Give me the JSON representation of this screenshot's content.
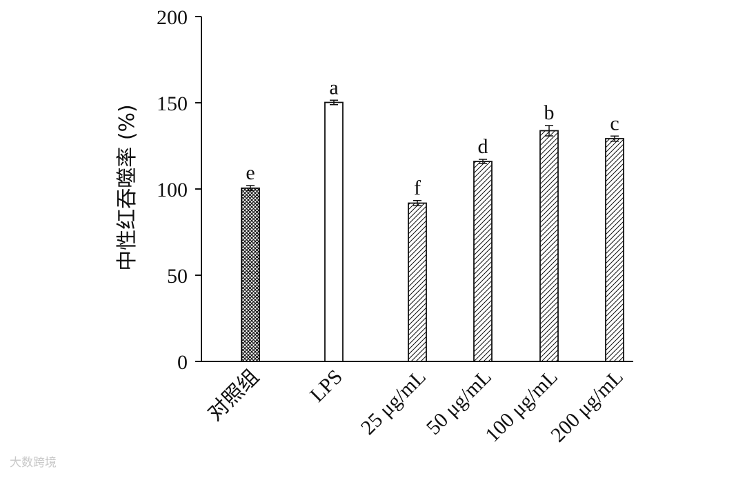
{
  "chart_data": {
    "type": "bar",
    "ylabel": "中性红吞噬率 (%)",
    "ylim": [
      0,
      200
    ],
    "yticks": [
      0,
      50,
      100,
      150,
      200
    ],
    "categories": [
      "对照组",
      "LPS",
      "25 μg/mL",
      "50 μg/mL",
      "100 μg/mL",
      "200 μg/mL"
    ],
    "values": [
      100.5,
      150.2,
      91.8,
      116.0,
      133.8,
      129.2
    ],
    "errors": [
      1.5,
      1.3,
      1.5,
      1.2,
      3.0,
      1.5
    ],
    "significance_letters": [
      "e",
      "a",
      "f",
      "d",
      "b",
      "c"
    ],
    "fill_patterns": [
      "crosshatch",
      "none",
      "diagonal",
      "diagonal",
      "diagonal",
      "diagonal"
    ],
    "grid": false,
    "legend": "none"
  },
  "watermark": "大数跨境"
}
